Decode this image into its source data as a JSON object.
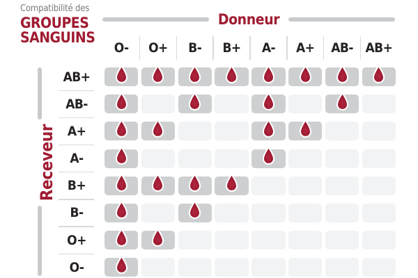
{
  "title": {
    "kicker": "Compatibilité des",
    "line1": "GROUPES",
    "line2": "SANGUINS"
  },
  "axes": {
    "donor": "Donneur",
    "receiver": "Receveur"
  },
  "chart_data": {
    "type": "heatmap",
    "title": "Compatibilité des groupes sanguins",
    "columns_axis_label": "Donneur",
    "rows_axis_label": "Receveur",
    "columns": [
      "O-",
      "O+",
      "B-",
      "B+",
      "A-",
      "A+",
      "AB-",
      "AB+"
    ],
    "rows": [
      "AB+",
      "AB-",
      "A+",
      "A-",
      "B+",
      "B-",
      "O+",
      "O-"
    ],
    "matrix": [
      [
        true,
        true,
        true,
        true,
        true,
        true,
        true,
        true
      ],
      [
        true,
        false,
        true,
        false,
        true,
        false,
        true,
        false
      ],
      [
        true,
        true,
        false,
        false,
        true,
        true,
        false,
        false
      ],
      [
        true,
        false,
        false,
        false,
        true,
        false,
        false,
        false
      ],
      [
        true,
        true,
        true,
        true,
        false,
        false,
        false,
        false
      ],
      [
        true,
        false,
        true,
        false,
        false,
        false,
        false,
        false
      ],
      [
        true,
        true,
        false,
        false,
        false,
        false,
        false,
        false
      ],
      [
        true,
        false,
        false,
        false,
        false,
        false,
        false,
        false
      ]
    ],
    "true_cell_icon": "blood-drop-icon"
  },
  "colors": {
    "accent_red": "#A01C32",
    "drop_red": "#A01C33",
    "drop_red_light": "#B22540",
    "drop_red_dark": "#8C1426",
    "label_dark": "#262223",
    "kicker_gray": "#77787B",
    "cell_filled": "#CDCFD0",
    "cell_empty": "#F2F3F4",
    "bar_gray": "#C8CACC",
    "divider_gray": "#D9DADB"
  }
}
